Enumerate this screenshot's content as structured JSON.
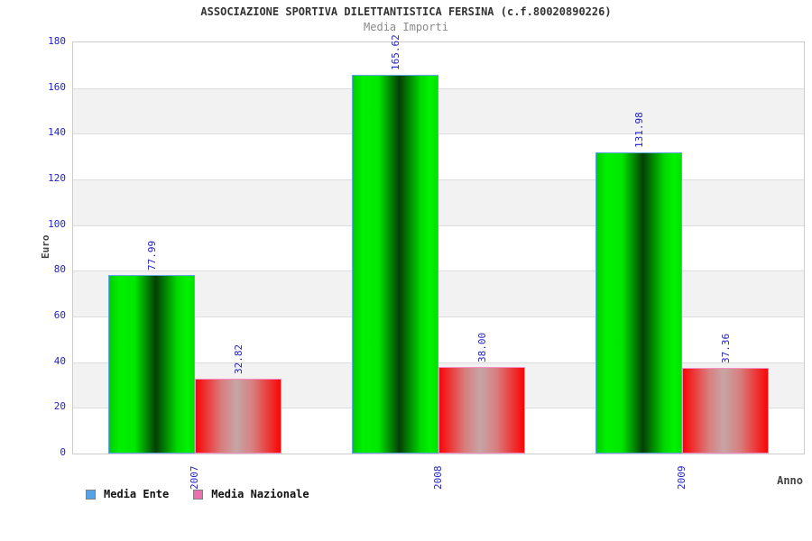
{
  "header": {
    "title": "ASSOCIAZIONE SPORTIVA DILETTANTISTICA FERSINA (c.f.80020890226)",
    "subtitle": "Media Importi"
  },
  "chart_data": {
    "type": "bar",
    "title": "ASSOCIAZIONE SPORTIVA DILETTANTISTICA FERSINA (c.f.80020890226)",
    "subtitle": "Media Importi",
    "categories": [
      "2007",
      "2008",
      "2009"
    ],
    "series": [
      {
        "name": "Media Ente",
        "values": [
          77.99,
          165.62,
          131.98
        ],
        "labels": [
          "77.99",
          "165.62",
          "131.98"
        ],
        "bar_style": "green-cylinder",
        "border_color": "#63a3e8",
        "legend_swatch_color": "#55a2e8"
      },
      {
        "name": "Media Nazionale",
        "values": [
          32.82,
          38.0,
          37.36
        ],
        "labels": [
          "32.82",
          "38.00",
          "37.36"
        ],
        "bar_style": "red-cylinder",
        "border_color": "#f78fc5",
        "legend_swatch_color": "#ee6fae"
      }
    ],
    "xlabel": "Anno",
    "ylabel": "Euro",
    "ylim": [
      0,
      180
    ],
    "ytick_step": 20,
    "yticks": [
      "0",
      "20",
      "40",
      "60",
      "80",
      "100",
      "120",
      "140",
      "160",
      "180"
    ],
    "grid": "horizontal alternating bands",
    "legend_position": "bottom-left",
    "colors": {
      "tick_text": "#2222cc",
      "value_label_text": "#2222cc",
      "title_text": "#333333",
      "subtitle_text": "#8a8a8a",
      "axis_title_text": "#444444",
      "band_gray": "#f2f2f2",
      "band_white": "#ffffff",
      "gridline": "#dddddd",
      "plot_border": "#cccccc",
      "green_bar_main": "#00ee00",
      "green_bar_dark": "#053f05",
      "red_bar_main": "#fa0505",
      "red_bar_light": "#c7a5a5"
    }
  }
}
